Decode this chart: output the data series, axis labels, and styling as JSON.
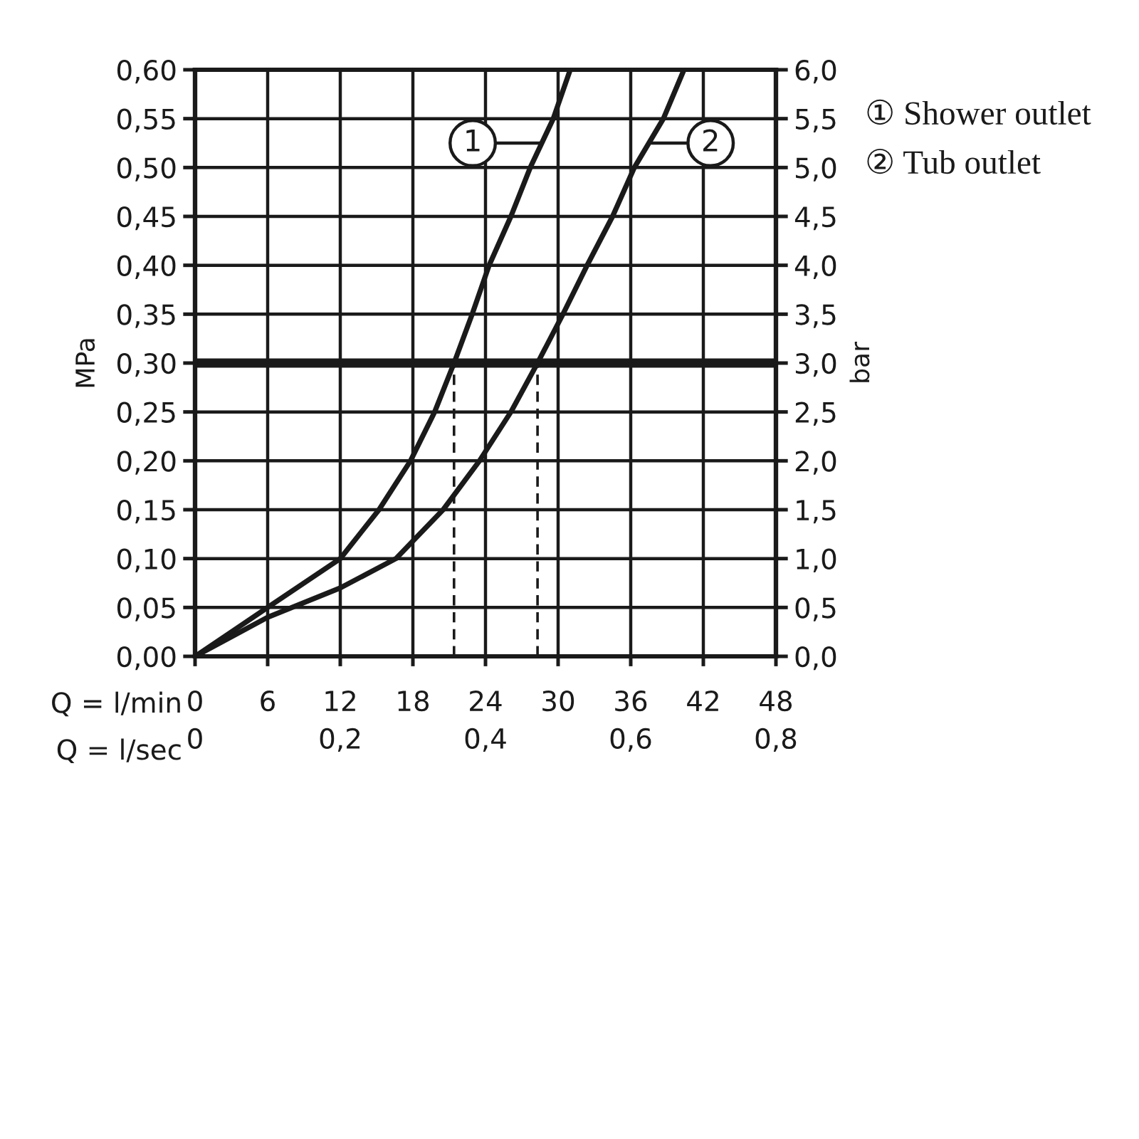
{
  "chart_data": {
    "type": "line",
    "xlabel": "Q = l/min",
    "x2label": "Q = l/sec",
    "ylabel": "MPa",
    "y2label": "bar",
    "xlim": [
      0,
      48
    ],
    "xticks": [
      0,
      6,
      12,
      18,
      24,
      30,
      36,
      42,
      48
    ],
    "x2lim": [
      0,
      0.8
    ],
    "x2ticks": [
      0,
      {
        "value": 0.2,
        "label": "0,2"
      },
      {
        "value": 0.4,
        "label": "0,4"
      },
      {
        "value": 0.6,
        "label": "0,6"
      },
      {
        "value": 0.8,
        "label": "0,8"
      }
    ],
    "ylim": [
      0,
      0.6
    ],
    "yticks": [
      {
        "value": 0,
        "label": "0,00"
      },
      {
        "value": 0.05,
        "label": "0,05"
      },
      {
        "value": 0.1,
        "label": "0,10"
      },
      {
        "value": 0.15,
        "label": "0,15"
      },
      {
        "value": 0.2,
        "label": "0,20"
      },
      {
        "value": 0.25,
        "label": "0,25"
      },
      {
        "value": 0.3,
        "label": "0,30"
      },
      {
        "value": 0.35,
        "label": "0,35"
      },
      {
        "value": 0.4,
        "label": "0,40"
      },
      {
        "value": 0.45,
        "label": "0,45"
      },
      {
        "value": 0.5,
        "label": "0,50"
      },
      {
        "value": 0.55,
        "label": "0,55"
      },
      {
        "value": 0.6,
        "label": "0,60"
      }
    ],
    "y2lim": [
      0,
      6
    ],
    "y2ticks": [
      {
        "value": 0,
        "label": "0,0"
      },
      {
        "value": 0.5,
        "label": "0,5"
      },
      {
        "value": 1,
        "label": "1,0"
      },
      {
        "value": 1.5,
        "label": "1,5"
      },
      {
        "value": 2,
        "label": "2,0"
      },
      {
        "value": 2.5,
        "label": "2,5"
      },
      {
        "value": 3,
        "label": "3,0"
      },
      {
        "value": 3.5,
        "label": "3,5"
      },
      {
        "value": 4,
        "label": "4,0"
      },
      {
        "value": 4.5,
        "label": "4,5"
      },
      {
        "value": 5,
        "label": "5,0"
      },
      {
        "value": 5.5,
        "label": "5,5"
      },
      {
        "value": 6,
        "label": "6,0"
      }
    ],
    "grid": true,
    "legend": "top right",
    "series": [
      {
        "name": "① Shower outlet",
        "color": "#1a1a1a",
        "x": [
          0,
          3,
          6,
          9,
          12,
          15.2,
          17.8,
          19.8,
          21.4,
          22.9,
          24.3,
          26.1,
          27.7,
          29.6,
          31.0
        ],
        "values": [
          0,
          0.025,
          0.05,
          0.075,
          0.1,
          0.15,
          0.2,
          0.25,
          0.3,
          0.35,
          0.4,
          0.45,
          0.5,
          0.55,
          0.6
        ]
      },
      {
        "name": "② Tub outlet",
        "color": "#1a1a1a",
        "x": [
          0,
          3,
          6,
          12,
          16.6,
          20.5,
          23.5,
          26.1,
          28.3,
          30.4,
          32.4,
          34.5,
          36.3,
          38.7,
          40.4
        ],
        "values": [
          0,
          0.02,
          0.04,
          0.07,
          0.1,
          0.15,
          0.2,
          0.25,
          0.3,
          0.35,
          0.4,
          0.45,
          0.5,
          0.55,
          0.6
        ]
      },
      {
        "color": "#1a1a1a",
        "line_style": "dashed",
        "x": [
          21.4,
          21.4
        ],
        "values": [
          0,
          0.3
        ]
      },
      {
        "color": "#1a1a1a",
        "line_style": "dashed",
        "x": [
          28.3,
          28.3
        ],
        "values": [
          0,
          0.3
        ]
      }
    ],
    "ref_lines": [
      {
        "axis": "y",
        "value": 0.3,
        "color": "#1a1a1a"
      }
    ],
    "annotations": [
      {
        "text": "1",
        "x": 28.5,
        "y": 0.525
      },
      {
        "text": "2",
        "x": 37.7,
        "y": 0.525
      }
    ]
  }
}
